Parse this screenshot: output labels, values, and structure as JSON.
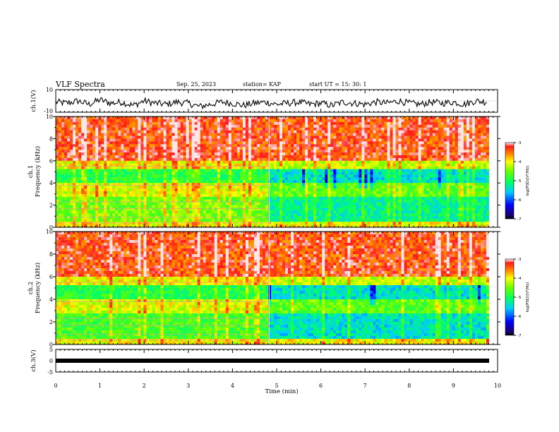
{
  "header": {
    "title": "VLF Spectra",
    "date": "Sep. 25, 2023",
    "station": "station= KAP",
    "start": "start UT = 15: 30: 1"
  },
  "chart_data": [
    {
      "id": "ch1_waveform",
      "type": "line",
      "ylabel": "ch.1(V)",
      "ylim": [
        -10,
        10
      ],
      "yticks": [
        10,
        -10
      ],
      "x": [
        0,
        0.25,
        0.5,
        0.75,
        1,
        1.25,
        1.5,
        1.75,
        2,
        2.25,
        2.5,
        2.75,
        3,
        3.25,
        3.5,
        3.75,
        4,
        4.25,
        4.5,
        4.75,
        5,
        5.25,
        5.5,
        5.75,
        6,
        6.25,
        6.5,
        6.75,
        7,
        7.25,
        7.5,
        7.75,
        8,
        8.25,
        8.5,
        8.75,
        9,
        9.25,
        9.5,
        9.75
      ],
      "values": [
        -1,
        -2,
        0,
        -3,
        1,
        -2,
        -1,
        -4,
        0,
        -2,
        -3,
        -1,
        -2,
        -5,
        -3,
        -1,
        -2,
        -4,
        -2,
        -1,
        -3,
        -2,
        -1,
        -3,
        -2,
        -4,
        -1,
        -2,
        -3,
        -1,
        -2,
        0,
        -2,
        -3,
        -1,
        -2,
        -1,
        -3,
        0,
        -1
      ]
    },
    {
      "id": "ch1_spectrogram",
      "type": "heatmap",
      "ylabel_top": "ch.1",
      "ylabel_bottom": "Frequency (kHz)",
      "ylim": [
        0,
        10
      ],
      "yticks": [
        0,
        2,
        4,
        6,
        8,
        10
      ],
      "xlim": [
        0,
        10
      ],
      "colorbar": {
        "label": "log(PSD)(V²/Hz)",
        "range": [
          -7,
          -3
        ],
        "ticks": [
          -3,
          -4,
          -5,
          -6,
          -7
        ]
      }
    },
    {
      "id": "ch2_spectrogram",
      "type": "heatmap",
      "ylabel_top": "ch.2",
      "ylabel_bottom": "Frequency (kHz)",
      "ylim": [
        0,
        10
      ],
      "yticks": [
        0,
        2,
        4,
        6,
        8,
        10
      ],
      "xlim": [
        0,
        10
      ],
      "colorbar": {
        "label": "log(PSD)(V²/Hz)",
        "range": [
          -7,
          -3
        ],
        "ticks": [
          -3,
          -4,
          -5,
          -6,
          -7
        ]
      }
    },
    {
      "id": "ch3_waveform",
      "type": "line",
      "ylabel": "ch.3(V)",
      "ylim": [
        -5,
        5
      ],
      "yticks": [
        5,
        0,
        -5
      ],
      "x": [
        0,
        9.8
      ],
      "values": [
        0,
        0
      ]
    }
  ],
  "xaxis": {
    "label": "Time (min)",
    "ticks": [
      0,
      1,
      2,
      3,
      4,
      5,
      6,
      7,
      8,
      9,
      10
    ]
  }
}
